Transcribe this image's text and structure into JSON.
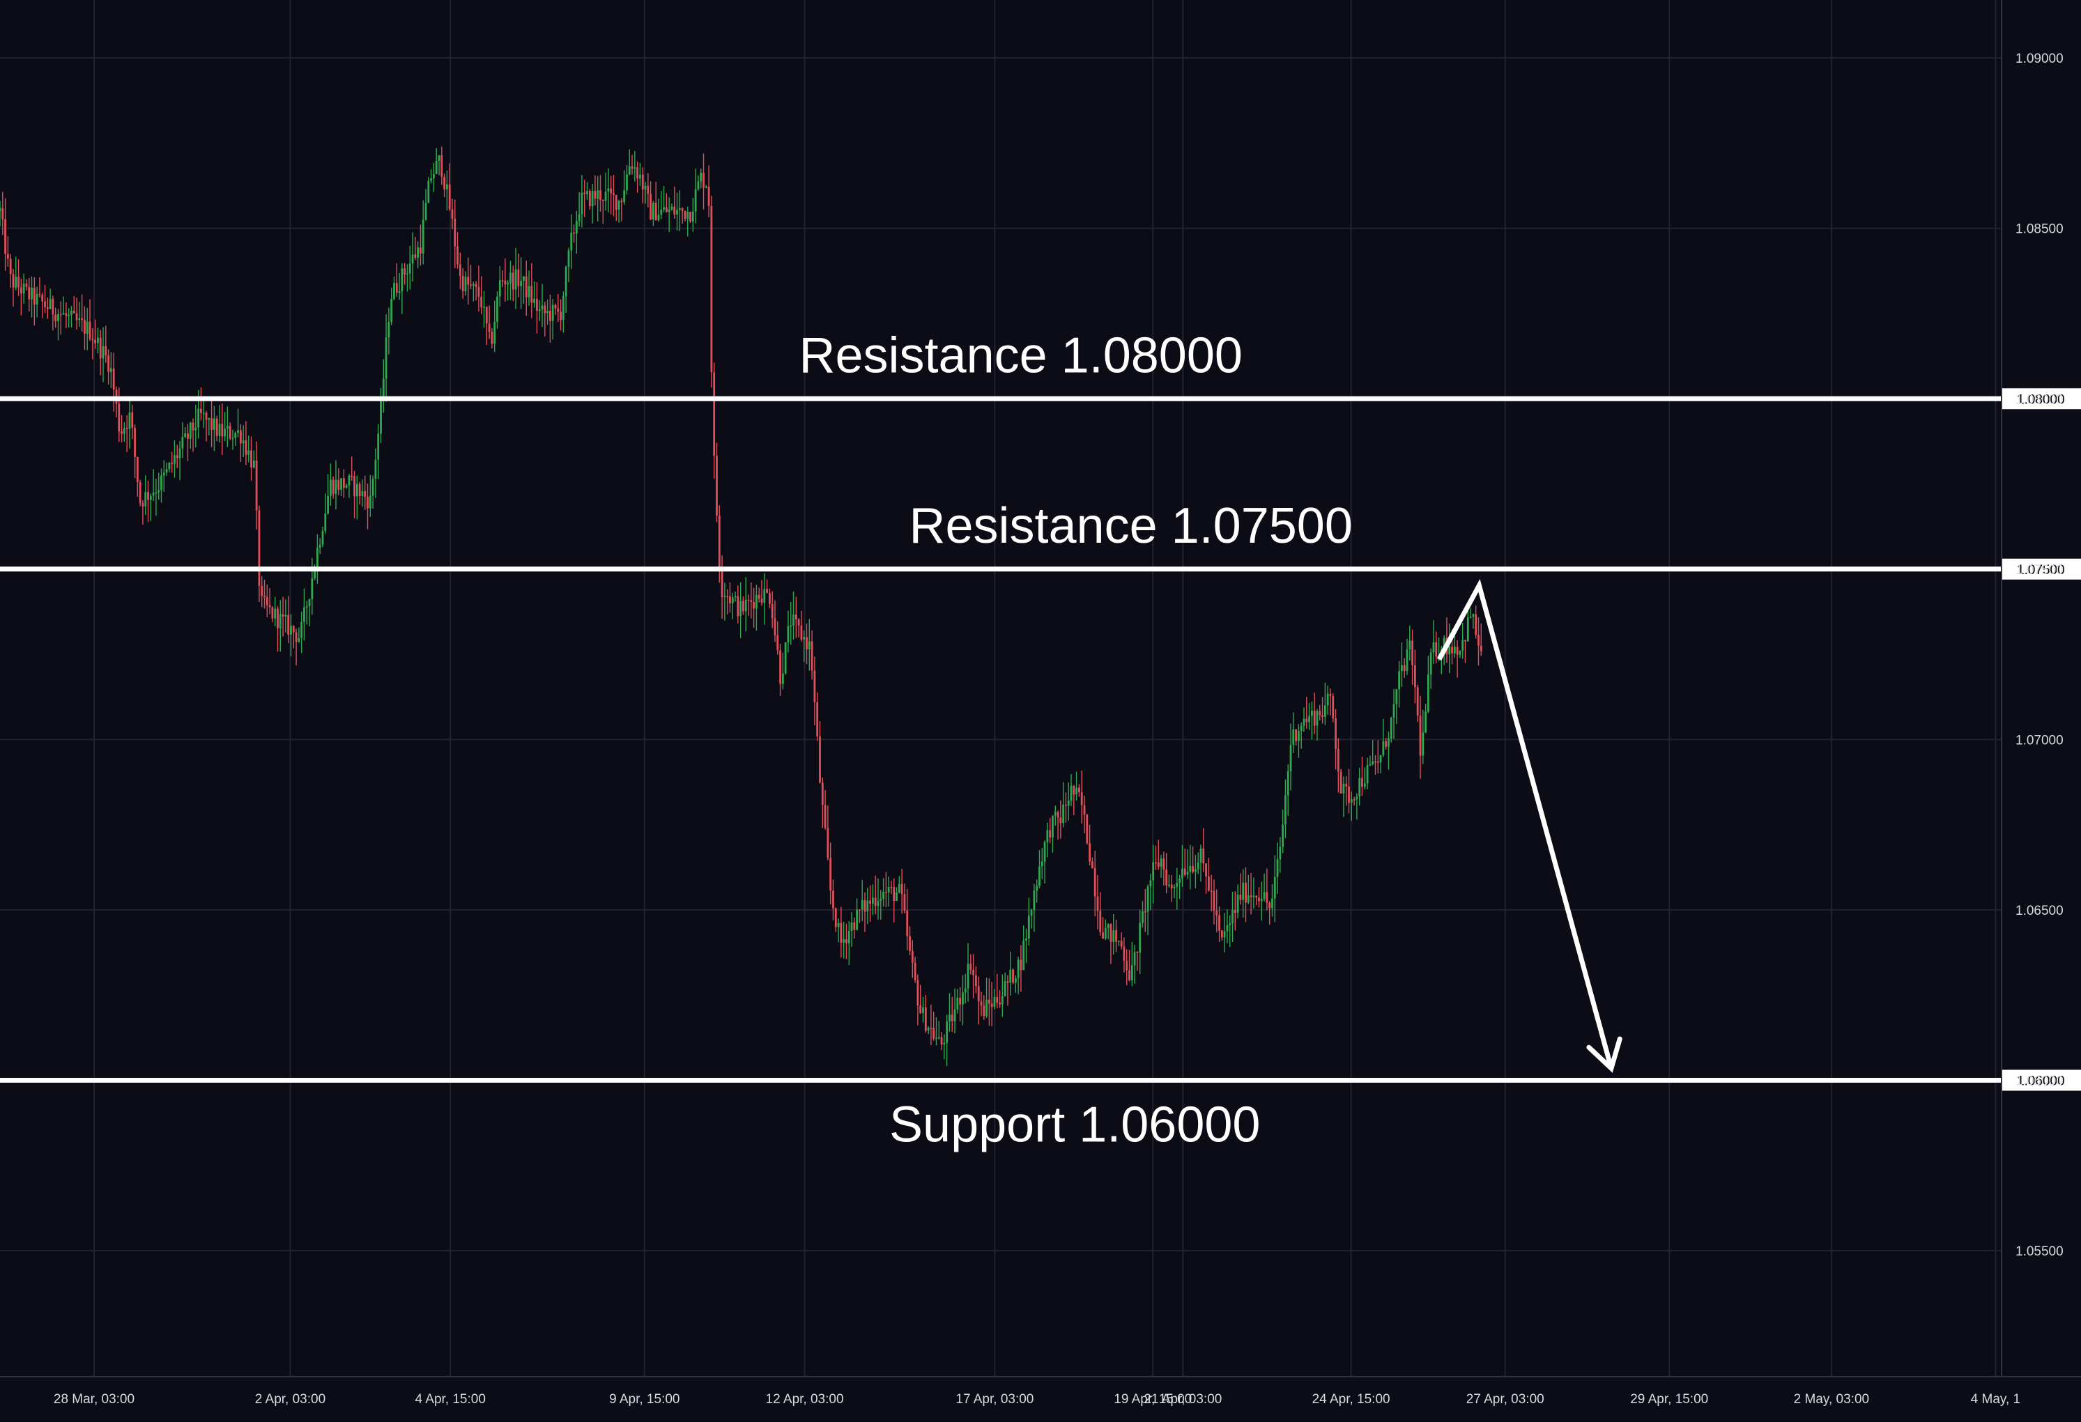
{
  "chart_data": {
    "type": "candlestick",
    "title": "",
    "xlabel": "",
    "ylabel": "",
    "ylim": [
      1.0513,
      1.0917
    ],
    "y_ticks": [
      "1.09000",
      "1.08500",
      "1.08000",
      "1.07500",
      "1.07000",
      "1.06500",
      "1.06000",
      "1.05500"
    ],
    "y_tick_values": [
      1.09,
      1.085,
      1.08,
      1.075,
      1.07,
      1.065,
      1.06,
      1.055
    ],
    "x_ticks": [
      "28 Mar, 03:00",
      "2 Apr, 03:00",
      "4 Apr, 15:00",
      "9 Apr, 15:00",
      "12 Apr, 03:00",
      "17 Apr, 03:00",
      "19 Apr, 15:00",
      "21 Apr, 03:00",
      "24 Apr, 15:00",
      "27 Apr, 03:00",
      "29 Apr, 15:00",
      "2 May, 03:00",
      "4 May, 1"
    ],
    "x_tick_positions": [
      0.047,
      0.145,
      0.225,
      0.322,
      0.402,
      0.497,
      0.576,
      0.591,
      0.675,
      0.752,
      0.834,
      0.915,
      0.997
    ],
    "price_path": [
      [
        0.0,
        1.0855
      ],
      [
        0.005,
        1.0835
      ],
      [
        0.015,
        1.083
      ],
      [
        0.03,
        1.0825
      ],
      [
        0.045,
        1.082
      ],
      [
        0.055,
        1.081
      ],
      [
        0.06,
        1.079
      ],
      [
        0.065,
        1.0795
      ],
      [
        0.07,
        1.077
      ],
      [
        0.08,
        1.0775
      ],
      [
        0.09,
        1.0785
      ],
      [
        0.1,
        1.0795
      ],
      [
        0.11,
        1.079
      ],
      [
        0.12,
        1.079
      ],
      [
        0.127,
        1.078
      ],
      [
        0.13,
        1.074
      ],
      [
        0.14,
        1.0735
      ],
      [
        0.15,
        1.073
      ],
      [
        0.155,
        1.0745
      ],
      [
        0.16,
        1.076
      ],
      [
        0.165,
        1.0775
      ],
      [
        0.175,
        1.0775
      ],
      [
        0.185,
        1.077
      ],
      [
        0.19,
        1.0795
      ],
      [
        0.195,
        1.083
      ],
      [
        0.2,
        1.0835
      ],
      [
        0.21,
        1.0845
      ],
      [
        0.215,
        1.0865
      ],
      [
        0.22,
        1.087
      ],
      [
        0.225,
        1.0855
      ],
      [
        0.23,
        1.0835
      ],
      [
        0.24,
        1.083
      ],
      [
        0.245,
        1.0815
      ],
      [
        0.25,
        1.0835
      ],
      [
        0.26,
        1.0835
      ],
      [
        0.27,
        1.0825
      ],
      [
        0.28,
        1.0825
      ],
      [
        0.285,
        1.0845
      ],
      [
        0.29,
        1.0858
      ],
      [
        0.3,
        1.086
      ],
      [
        0.31,
        1.0858
      ],
      [
        0.315,
        1.087
      ],
      [
        0.32,
        1.0865
      ],
      [
        0.325,
        1.0855
      ],
      [
        0.335,
        1.0855
      ],
      [
        0.345,
        1.0855
      ],
      [
        0.35,
        1.0865
      ],
      [
        0.354,
        1.0863
      ],
      [
        0.356,
        1.079
      ],
      [
        0.36,
        1.0745
      ],
      [
        0.37,
        1.0738
      ],
      [
        0.38,
        1.0743
      ],
      [
        0.385,
        1.0742
      ],
      [
        0.39,
        1.0718
      ],
      [
        0.395,
        1.0735
      ],
      [
        0.405,
        1.0727
      ],
      [
        0.41,
        1.0685
      ],
      [
        0.415,
        1.0655
      ],
      [
        0.42,
        1.064
      ],
      [
        0.43,
        1.065
      ],
      [
        0.44,
        1.0655
      ],
      [
        0.45,
        1.0655
      ],
      [
        0.455,
        1.0635
      ],
      [
        0.46,
        1.062
      ],
      [
        0.47,
        1.061
      ],
      [
        0.48,
        1.0625
      ],
      [
        0.485,
        1.0635
      ],
      [
        0.49,
        1.062
      ],
      [
        0.5,
        1.0625
      ],
      [
        0.51,
        1.0635
      ],
      [
        0.515,
        1.065
      ],
      [
        0.52,
        1.0665
      ],
      [
        0.525,
        1.0675
      ],
      [
        0.53,
        1.0677
      ],
      [
        0.535,
        1.0685
      ],
      [
        0.54,
        1.0682
      ],
      [
        0.545,
        1.0665
      ],
      [
        0.55,
        1.0645
      ],
      [
        0.56,
        1.064
      ],
      [
        0.565,
        1.063
      ],
      [
        0.57,
        1.0645
      ],
      [
        0.575,
        1.066
      ],
      [
        0.58,
        1.0665
      ],
      [
        0.585,
        1.0655
      ],
      [
        0.59,
        1.0662
      ],
      [
        0.6,
        1.0665
      ],
      [
        0.605,
        1.0655
      ],
      [
        0.61,
        1.064
      ],
      [
        0.615,
        1.0647
      ],
      [
        0.62,
        1.0655
      ],
      [
        0.63,
        1.0655
      ],
      [
        0.635,
        1.065
      ],
      [
        0.64,
        1.067
      ],
      [
        0.645,
        1.07
      ],
      [
        0.65,
        1.0705
      ],
      [
        0.66,
        1.0708
      ],
      [
        0.665,
        1.0712
      ],
      [
        0.67,
        1.0685
      ],
      [
        0.675,
        1.0683
      ],
      [
        0.68,
        1.0688
      ],
      [
        0.69,
        1.0695
      ],
      [
        0.695,
        1.0705
      ],
      [
        0.7,
        1.072
      ],
      [
        0.705,
        1.0727
      ],
      [
        0.71,
        1.0695
      ],
      [
        0.715,
        1.0725
      ],
      [
        0.72,
        1.0728
      ],
      [
        0.73,
        1.0727
      ],
      [
        0.735,
        1.0737
      ],
      [
        0.74,
        1.0725
      ]
    ],
    "levels": [
      {
        "label": "Resistance 1.08000",
        "value": 1.08,
        "axis_label": "1.08000",
        "label_x": 0.51
      },
      {
        "label": "Resistance 1.07500",
        "value": 1.075,
        "axis_label": "1.07500",
        "label_x": 0.565
      },
      {
        "label": "Support 1.06000",
        "value": 1.06,
        "axis_label": "1.06000",
        "label_x": 0.537
      }
    ],
    "projection": [
      [
        0.719,
        1.07235
      ],
      [
        0.739,
        1.07452
      ],
      [
        0.805,
        1.06035
      ]
    ],
    "colors": {
      "background": "#0c0c16",
      "grid": "#222230",
      "up": "#2fa84f",
      "down": "#e0505a",
      "level": "#ffffff",
      "axis_text": "#d9d9e0",
      "label_box": "#ffffff",
      "label_box_text": "#000000"
    }
  }
}
